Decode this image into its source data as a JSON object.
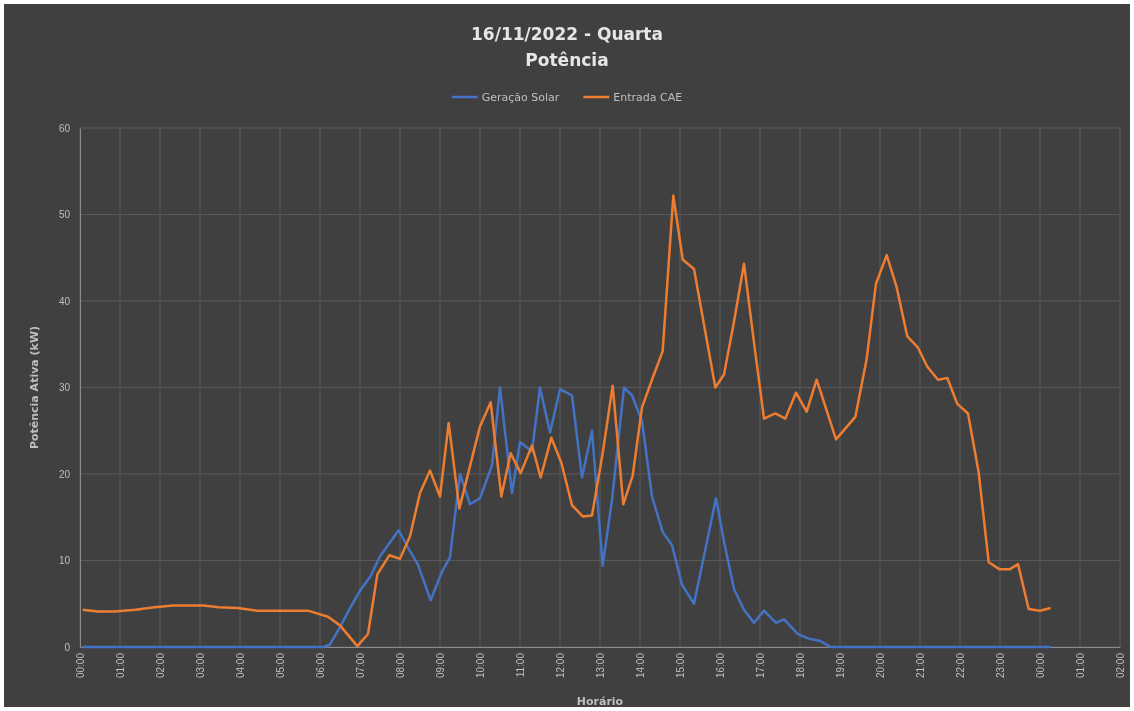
{
  "chart_data": {
    "type": "line",
    "title": "16/11/2022 - Quarta",
    "subtitle": "Potência",
    "xlabel": "Horário",
    "ylabel": "Potência Ativa (kW)",
    "xlim": [
      "2022-11-16T00:00",
      "2022-11-17T02:00"
    ],
    "xticks": [
      {
        "value": "2022-11-16T00:00",
        "label": "00:00"
      },
      {
        "value": "2022-11-16T01:00",
        "label": "01:00"
      },
      {
        "value": "2022-11-16T02:00",
        "label": "02:00"
      },
      {
        "value": "2022-11-16T03:00",
        "label": "03:00"
      },
      {
        "value": "2022-11-16T04:00",
        "label": "04:00"
      },
      {
        "value": "2022-11-16T05:00",
        "label": "05:00"
      },
      {
        "value": "2022-11-16T06:00",
        "label": "06:00"
      },
      {
        "value": "2022-11-16T07:00",
        "label": "07:00"
      },
      {
        "value": "2022-11-16T08:00",
        "label": "08:00"
      },
      {
        "value": "2022-11-16T09:00",
        "label": "09:00"
      },
      {
        "value": "2022-11-16T10:00",
        "label": "10:00"
      },
      {
        "value": "2022-11-16T11:00",
        "label": "11:00"
      },
      {
        "value": "2022-11-16T12:00",
        "label": "12:00"
      },
      {
        "value": "2022-11-16T13:00",
        "label": "13:00"
      },
      {
        "value": "2022-11-16T14:00",
        "label": "14:00"
      },
      {
        "value": "2022-11-16T15:00",
        "label": "15:00"
      },
      {
        "value": "2022-11-16T16:00",
        "label": "16:00"
      },
      {
        "value": "2022-11-16T17:00",
        "label": "17:00"
      },
      {
        "value": "2022-11-16T18:00",
        "label": "18:00"
      },
      {
        "value": "2022-11-16T19:00",
        "label": "19:00"
      },
      {
        "value": "2022-11-16T20:00",
        "label": "20:00"
      },
      {
        "value": "2022-11-16T21:00",
        "label": "21:00"
      },
      {
        "value": "2022-11-16T22:00",
        "label": "22:00"
      },
      {
        "value": "2022-11-16T23:00",
        "label": "23:00"
      },
      {
        "value": "2022-11-17T00:00",
        "label": "00:00"
      },
      {
        "value": "2022-11-17T01:00",
        "label": "01:00"
      },
      {
        "value": "2022-11-17T02:00",
        "label": "02:00"
      }
    ],
    "ylim": [
      0,
      60
    ],
    "yticks": [
      0,
      10,
      20,
      30,
      40,
      50,
      60
    ],
    "grid": true,
    "legend": "top",
    "marker": "none",
    "line_style": "solid",
    "series": [
      {
        "name": "Geração Solar",
        "color": "#4472c4",
        "x": [
          "2022-11-16T00:04",
          "2022-11-16T06:06",
          "2022-11-16T06:15",
          "2022-11-16T06:30",
          "2022-11-16T06:45",
          "2022-11-16T07:00",
          "2022-11-16T07:16",
          "2022-11-16T07:30",
          "2022-11-16T07:58",
          "2022-11-16T08:12",
          "2022-11-16T08:27",
          "2022-11-16T08:46",
          "2022-11-16T09:03",
          "2022-11-16T09:15",
          "2022-11-16T09:30",
          "2022-11-16T09:45",
          "2022-11-16T10:00",
          "2022-11-16T10:18",
          "2022-11-16T10:30",
          "2022-11-16T10:48",
          "2022-11-16T11:00",
          "2022-11-16T11:18",
          "2022-11-16T11:30",
          "2022-11-16T11:45",
          "2022-11-16T12:00",
          "2022-11-16T12:18",
          "2022-11-16T12:33",
          "2022-11-16T12:48",
          "2022-11-16T13:04",
          "2022-11-16T13:18",
          "2022-11-16T13:36",
          "2022-11-16T13:48",
          "2022-11-16T14:03",
          "2022-11-16T14:18",
          "2022-11-16T14:34",
          "2022-11-16T14:48",
          "2022-11-16T15:03",
          "2022-11-16T15:21",
          "2022-11-16T15:54",
          "2022-11-16T16:06",
          "2022-11-16T16:21",
          "2022-11-16T16:36",
          "2022-11-16T16:51",
          "2022-11-16T17:06",
          "2022-11-16T17:24",
          "2022-11-16T17:36",
          "2022-11-16T17:57",
          "2022-11-16T18:12",
          "2022-11-16T18:30",
          "2022-11-16T18:46",
          "2022-11-17T00:16"
        ],
        "values": [
          0,
          0,
          0.3,
          2.3,
          4.5,
          6.5,
          8.2,
          10.5,
          13.5,
          11.5,
          9.5,
          5.4,
          8.7,
          10.4,
          20,
          16.5,
          17.2,
          21,
          30,
          17.8,
          23.7,
          22.6,
          30,
          24.8,
          29.8,
          29.1,
          19.6,
          25,
          9.4,
          17,
          30,
          29.1,
          26.1,
          17.4,
          13.3,
          11.8,
          7.2,
          5,
          17.2,
          12.2,
          6.7,
          4.3,
          2.8,
          4.2,
          2.8,
          3.2,
          1.5,
          1,
          0.7,
          0,
          0
        ]
      },
      {
        "name": "Entrada CAE",
        "color": "#ed7d31",
        "x": [
          "2022-11-16T00:04",
          "2022-11-16T00:27",
          "2022-11-16T00:52",
          "2022-11-16T01:23",
          "2022-11-16T01:52",
          "2022-11-16T02:20",
          "2022-11-16T03:05",
          "2022-11-16T03:28",
          "2022-11-16T03:56",
          "2022-11-16T04:25",
          "2022-11-16T05:11",
          "2022-11-16T05:42",
          "2022-11-16T06:12",
          "2022-11-16T06:30",
          "2022-11-16T06:56",
          "2022-11-16T07:12",
          "2022-11-16T07:26",
          "2022-11-16T07:44",
          "2022-11-16T08:00",
          "2022-11-16T08:15",
          "2022-11-16T08:30",
          "2022-11-16T08:45",
          "2022-11-16T09:00",
          "2022-11-16T09:13",
          "2022-11-16T09:29",
          "2022-11-16T10:00",
          "2022-11-16T10:16",
          "2022-11-16T10:32",
          "2022-11-16T10:46",
          "2022-11-16T11:01",
          "2022-11-16T11:18",
          "2022-11-16T11:31",
          "2022-11-16T11:47",
          "2022-11-16T12:02",
          "2022-11-16T12:18",
          "2022-11-16T12:34",
          "2022-11-16T12:48",
          "2022-11-16T13:04",
          "2022-11-16T13:19",
          "2022-11-16T13:35",
          "2022-11-16T13:49",
          "2022-11-16T14:03",
          "2022-11-16T14:19",
          "2022-11-16T14:34",
          "2022-11-16T14:50",
          "2022-11-16T15:04",
          "2022-11-16T15:21",
          "2022-11-16T15:53",
          "2022-11-16T16:06",
          "2022-11-16T16:21",
          "2022-11-16T16:36",
          "2022-11-16T16:52",
          "2022-11-16T17:06",
          "2022-11-16T17:23",
          "2022-11-16T17:38",
          "2022-11-16T17:54",
          "2022-11-16T18:10",
          "2022-11-16T18:25",
          "2022-11-16T18:54",
          "2022-11-16T19:23",
          "2022-11-16T19:40",
          "2022-11-16T19:54",
          "2022-11-16T20:10",
          "2022-11-16T20:25",
          "2022-11-16T20:41",
          "2022-11-16T20:57",
          "2022-11-16T21:11",
          "2022-11-16T21:27",
          "2022-11-16T21:41",
          "2022-11-16T21:56",
          "2022-11-16T22:12",
          "2022-11-16T22:28",
          "2022-11-16T22:43",
          "2022-11-16T22:59",
          "2022-11-16T23:15",
          "2022-11-16T23:27",
          "2022-11-16T23:43",
          "2022-11-17T00:00",
          "2022-11-17T00:16"
        ],
        "values": [
          4.3,
          4.1,
          4.1,
          4.3,
          4.6,
          4.8,
          4.8,
          4.6,
          4.5,
          4.2,
          4.2,
          4.2,
          3.5,
          2.5,
          0.1,
          1.5,
          8.4,
          10.6,
          10.2,
          12.8,
          17.8,
          20.4,
          17.4,
          25.9,
          16,
          25.5,
          28.3,
          17.4,
          22.4,
          20.1,
          23.3,
          19.6,
          24.2,
          21.3,
          16.4,
          15.1,
          15.2,
          22.4,
          30.2,
          16.5,
          19.8,
          27.7,
          31.1,
          34.2,
          52.2,
          44.8,
          43.7,
          30,
          31.5,
          37.6,
          44.3,
          34.6,
          26.4,
          27,
          26.4,
          29.4,
          27.2,
          30.9,
          24,
          26.6,
          33.3,
          42,
          45.3,
          41.6,
          35.9,
          34.6,
          32.4,
          30.9,
          31.1,
          28.1,
          27,
          20.2,
          9.8,
          9,
          9,
          9.6,
          4.4,
          4.2,
          4.5
        ]
      }
    ]
  }
}
